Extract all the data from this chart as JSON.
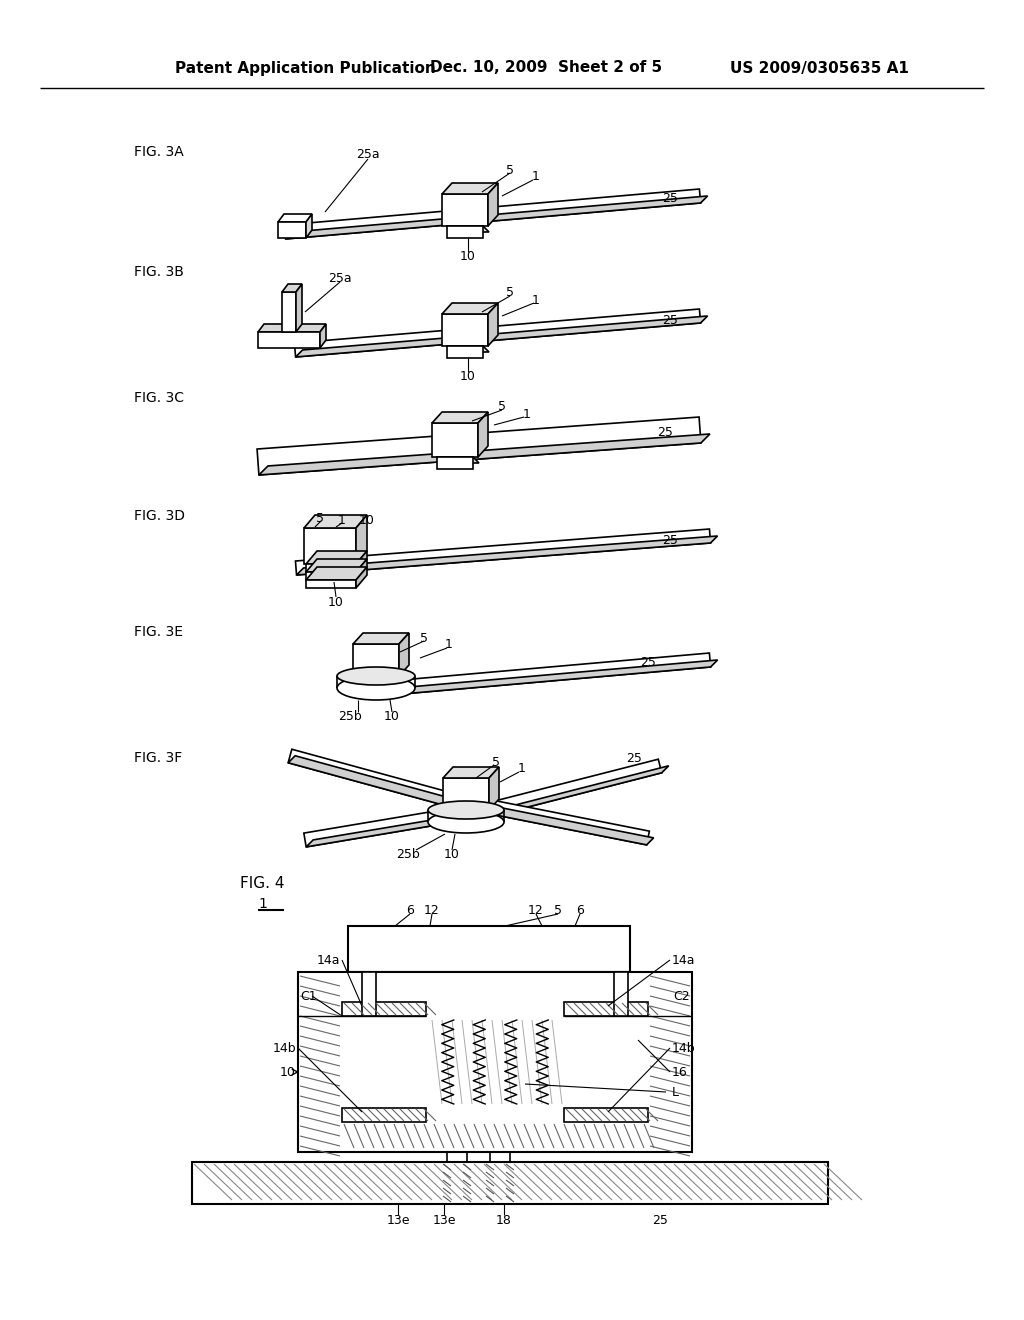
{
  "header_left": "Patent Application Publication",
  "header_mid": "Dec. 10, 2009  Sheet 2 of 5",
  "header_right": "US 2009/0305635 A1",
  "bg_color": "#ffffff"
}
